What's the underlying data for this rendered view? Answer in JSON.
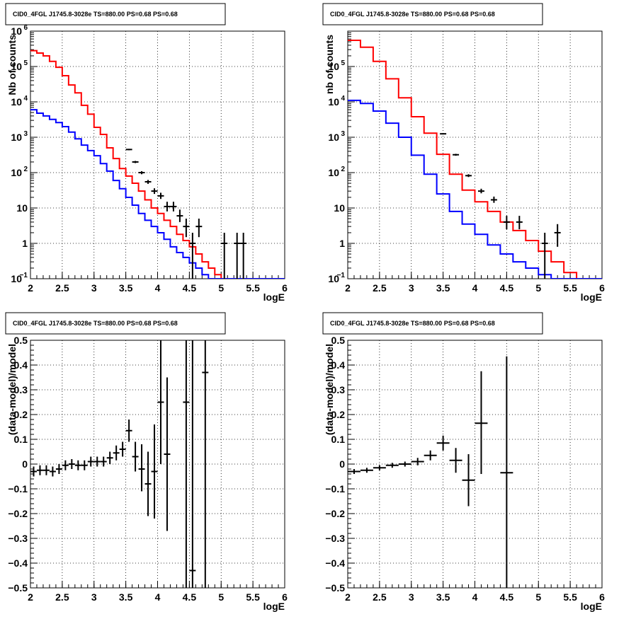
{
  "colors": {
    "data": "#000000",
    "model_total": "#ff0000",
    "model_bkg": "#0000ff",
    "grid": "#000000"
  },
  "chart_data": [
    {
      "type": "line",
      "title": "CID0_4FGL J1745.8-3028e TS=880.00 PS=0.68 PS=0.68",
      "xlabel": "logE",
      "ylabel": "Nb of counts",
      "xlim": [
        2,
        6
      ],
      "ylim": [
        0.1,
        1000000
      ],
      "yscale": "log",
      "grid": true,
      "x_ticks": [
        "2",
        "2.5",
        "3",
        "3.5",
        "4",
        "4.5",
        "5",
        "5.5",
        "6"
      ],
      "y_ticks": [
        {
          "value": 0.1,
          "label": "10",
          "exp": "−1"
        },
        {
          "value": 1,
          "label": "1",
          "exp": ""
        },
        {
          "value": 10,
          "label": "10",
          "exp": ""
        },
        {
          "value": 100,
          "label": "10",
          "exp": "2"
        },
        {
          "value": 1000,
          "label": "10",
          "exp": "3"
        },
        {
          "value": 10000,
          "label": "10",
          "exp": "4"
        },
        {
          "value": 100000,
          "label": "10",
          "exp": "5"
        },
        {
          "value": 1000000,
          "label": "10",
          "exp": "6"
        }
      ],
      "bin_edges": [
        2.0,
        2.1,
        2.2,
        2.3,
        2.4,
        2.5,
        2.6,
        2.7,
        2.8,
        2.9,
        3.0,
        3.1,
        3.2,
        3.3,
        3.4,
        3.5,
        3.6,
        3.7,
        3.8,
        3.9,
        4.0,
        4.1,
        4.2,
        4.3,
        4.4,
        4.5,
        4.6,
        4.7,
        4.8,
        4.9,
        5.0,
        5.1,
        5.2,
        5.3,
        5.4,
        5.5,
        5.6,
        5.7,
        5.8,
        5.9,
        6.0
      ],
      "series": [
        {
          "name": "",
          "style": "hist",
          "color": "#ff0000",
          "values": [
            280000,
            240000,
            200000,
            140000,
            95000,
            55000,
            30000,
            18000,
            8000,
            4500,
            1900,
            1200,
            500,
            250,
            130,
            80,
            50,
            30,
            17,
            10,
            7,
            4.5,
            3,
            1.8,
            1.2,
            0.8,
            0.5,
            0.3,
            0.2,
            0.13,
            0.1,
            0.1,
            0.1,
            0.1,
            0.1,
            0.1,
            0.1,
            0.1,
            0.1,
            0.1
          ]
        },
        {
          "name": "",
          "style": "hist",
          "color": "#0000ff",
          "values": [
            6000,
            4800,
            4000,
            3200,
            2600,
            2000,
            1400,
            900,
            600,
            420,
            300,
            180,
            110,
            60,
            35,
            20,
            12,
            7,
            4.5,
            3,
            2,
            1.3,
            0.8,
            0.55,
            0.4,
            0.28,
            0.2,
            0.13,
            0.1,
            0.1,
            0.1,
            0.1,
            0.1,
            0.1,
            0.1,
            0.1,
            0.1,
            0.1,
            0.1,
            0.1
          ]
        },
        {
          "name": "",
          "style": "points",
          "color": "#000000",
          "points": [
            {
              "x": 3.55,
              "y": 450,
              "ylo": 430,
              "yhi": 470
            },
            {
              "x": 3.65,
              "y": 200,
              "ylo": 186,
              "yhi": 214
            },
            {
              "x": 3.75,
              "y": 100,
              "ylo": 90,
              "yhi": 110
            },
            {
              "x": 3.85,
              "y": 55,
              "ylo": 48,
              "yhi": 62
            },
            {
              "x": 3.95,
              "y": 30,
              "ylo": 25,
              "yhi": 36
            },
            {
              "x": 4.05,
              "y": 22,
              "ylo": 18,
              "yhi": 27
            },
            {
              "x": 4.15,
              "y": 11,
              "ylo": 8,
              "yhi": 15
            },
            {
              "x": 4.25,
              "y": 11,
              "ylo": 8,
              "yhi": 15
            },
            {
              "x": 4.35,
              "y": 6,
              "ylo": 4,
              "yhi": 9
            },
            {
              "x": 4.45,
              "y": 3,
              "ylo": 1.5,
              "yhi": 5
            },
            {
              "x": 4.55,
              "y": 1,
              "ylo": 0.1,
              "yhi": 2
            },
            {
              "x": 4.65,
              "y": 3,
              "ylo": 1.5,
              "yhi": 5
            },
            {
              "x": 5.05,
              "y": 1,
              "ylo": 0.1,
              "yhi": 2
            },
            {
              "x": 5.25,
              "y": 1,
              "ylo": 0.1,
              "yhi": 2
            },
            {
              "x": 5.35,
              "y": 1,
              "ylo": 0.1,
              "yhi": 2
            }
          ]
        }
      ]
    },
    {
      "type": "line",
      "title": "CID0_4FGL J1745.8-3028e TS=880.00 PS=0.68 PS=0.68",
      "xlabel": "logE",
      "ylabel": "nb of counts",
      "xlim": [
        2,
        6
      ],
      "ylim": [
        0.1,
        1000000
      ],
      "yscale": "log",
      "grid": true,
      "x_ticks": [
        "2",
        "2.5",
        "3",
        "3.5",
        "4",
        "4.5",
        "5",
        "5.5",
        "6"
      ],
      "y_ticks": [
        {
          "value": 0.1,
          "label": "10",
          "exp": "−1"
        },
        {
          "value": 1,
          "label": "1",
          "exp": ""
        },
        {
          "value": 10,
          "label": "10",
          "exp": ""
        },
        {
          "value": 100,
          "label": "10",
          "exp": "2"
        },
        {
          "value": 1000,
          "label": "10",
          "exp": "3"
        },
        {
          "value": 10000,
          "label": "10",
          "exp": "4"
        },
        {
          "value": 100000,
          "label": "10",
          "exp": "5"
        }
      ],
      "bin_edges": [
        2.0,
        2.2,
        2.4,
        2.6,
        2.8,
        3.0,
        3.2,
        3.4,
        3.6,
        3.8,
        4.0,
        4.2,
        4.4,
        4.6,
        4.8,
        5.0,
        5.2,
        5.4,
        5.6,
        5.8,
        6.0
      ],
      "series": [
        {
          "name": "",
          "style": "hist",
          "color": "#ff0000",
          "values": [
            550000,
            350000,
            140000,
            45000,
            13000,
            3800,
            1300,
            330,
            90,
            32,
            15,
            8,
            4,
            2.3,
            1.2,
            0.6,
            0.3,
            0.15,
            0.1,
            0.1
          ]
        },
        {
          "name": "",
          "style": "hist",
          "color": "#0000ff",
          "values": [
            11000,
            9000,
            5500,
            2500,
            1000,
            310,
            90,
            25,
            8,
            3.5,
            1.8,
            0.9,
            0.5,
            0.3,
            0.2,
            0.13,
            0.1,
            0.1,
            0.1,
            0.1
          ]
        },
        {
          "name": "",
          "style": "points",
          "color": "#000000",
          "points": [
            {
              "x": 3.5,
              "y": 1250,
              "ylo": 1200,
              "yhi": 1300
            },
            {
              "x": 3.7,
              "y": 320,
              "ylo": 300,
              "yhi": 340
            },
            {
              "x": 3.9,
              "y": 82,
              "ylo": 75,
              "yhi": 90
            },
            {
              "x": 4.1,
              "y": 30,
              "ylo": 26,
              "yhi": 35
            },
            {
              "x": 4.3,
              "y": 17,
              "ylo": 14,
              "yhi": 21
            },
            {
              "x": 4.5,
              "y": 4,
              "ylo": 2.5,
              "yhi": 6
            },
            {
              "x": 4.7,
              "y": 4,
              "ylo": 2.5,
              "yhi": 6
            },
            {
              "x": 5.1,
              "y": 1,
              "ylo": 0.1,
              "yhi": 2
            },
            {
              "x": 5.3,
              "y": 2,
              "ylo": 0.8,
              "yhi": 3.5
            }
          ]
        }
      ]
    },
    {
      "type": "scatter",
      "title": "CID0_4FGL J1745.8-3028e TS=880.00 PS=0.68 PS=0.68",
      "xlabel": "logE",
      "ylabel": "(data-model)/model",
      "xlim": [
        2,
        6
      ],
      "ylim": [
        -0.5,
        0.5
      ],
      "yscale": "linear",
      "grid": true,
      "x_ticks": [
        "2",
        "2.5",
        "3",
        "3.5",
        "4",
        "4.5",
        "5",
        "5.5",
        "6"
      ],
      "y_ticks": [
        {
          "value": -0.5,
          "label": "−0.5",
          "exp": ""
        },
        {
          "value": -0.4,
          "label": "−0.4",
          "exp": ""
        },
        {
          "value": -0.3,
          "label": "−0.3",
          "exp": ""
        },
        {
          "value": -0.2,
          "label": "−0.2",
          "exp": ""
        },
        {
          "value": -0.1,
          "label": "−0.1",
          "exp": ""
        },
        {
          "value": 0,
          "label": "0",
          "exp": ""
        },
        {
          "value": 0.1,
          "label": "0.1",
          "exp": ""
        },
        {
          "value": 0.2,
          "label": "0.2",
          "exp": ""
        },
        {
          "value": 0.3,
          "label": "0.3",
          "exp": ""
        },
        {
          "value": 0.4,
          "label": "0.4",
          "exp": ""
        },
        {
          "value": 0.5,
          "label": "0.5",
          "exp": ""
        }
      ],
      "series": [
        {
          "name": "",
          "style": "points",
          "color": "#000000",
          "xerr": 0.05,
          "points": [
            {
              "x": 2.05,
              "y": -0.03,
              "ylo": -0.05,
              "yhi": -0.01
            },
            {
              "x": 2.15,
              "y": -0.025,
              "ylo": -0.045,
              "yhi": -0.005
            },
            {
              "x": 2.25,
              "y": -0.025,
              "ylo": -0.045,
              "yhi": -0.005
            },
            {
              "x": 2.35,
              "y": -0.03,
              "ylo": -0.05,
              "yhi": -0.01
            },
            {
              "x": 2.45,
              "y": -0.02,
              "ylo": -0.04,
              "yhi": 0.0
            },
            {
              "x": 2.55,
              "y": -0.005,
              "ylo": -0.025,
              "yhi": 0.015
            },
            {
              "x": 2.65,
              "y": 0.0,
              "ylo": -0.02,
              "yhi": 0.02
            },
            {
              "x": 2.75,
              "y": -0.005,
              "ylo": -0.025,
              "yhi": 0.015
            },
            {
              "x": 2.85,
              "y": -0.005,
              "ylo": -0.025,
              "yhi": 0.015
            },
            {
              "x": 2.95,
              "y": 0.01,
              "ylo": -0.01,
              "yhi": 0.03
            },
            {
              "x": 3.05,
              "y": 0.01,
              "ylo": -0.01,
              "yhi": 0.03
            },
            {
              "x": 3.15,
              "y": 0.01,
              "ylo": -0.01,
              "yhi": 0.03
            },
            {
              "x": 3.25,
              "y": 0.025,
              "ylo": 0.0,
              "yhi": 0.05
            },
            {
              "x": 3.35,
              "y": 0.045,
              "ylo": 0.015,
              "yhi": 0.075
            },
            {
              "x": 3.45,
              "y": 0.06,
              "ylo": 0.03,
              "yhi": 0.09
            },
            {
              "x": 3.55,
              "y": 0.135,
              "ylo": 0.09,
              "yhi": 0.18
            },
            {
              "x": 3.65,
              "y": 0.03,
              "ylo": -0.03,
              "yhi": 0.09
            },
            {
              "x": 3.75,
              "y": -0.02,
              "ylo": -0.11,
              "yhi": 0.08
            },
            {
              "x": 3.85,
              "y": -0.08,
              "ylo": -0.21,
              "yhi": 0.05
            },
            {
              "x": 3.95,
              "y": -0.03,
              "ylo": -0.22,
              "yhi": 0.16
            },
            {
              "x": 4.05,
              "y": 0.25,
              "ylo": 0.0,
              "yhi": 0.5
            },
            {
              "x": 4.15,
              "y": 0.04,
              "ylo": -0.27,
              "yhi": 0.35
            },
            {
              "x": 4.45,
              "y": 0.25,
              "ylo": -0.5,
              "yhi": 0.5
            },
            {
              "x": 4.55,
              "y": -0.43,
              "ylo": -0.5,
              "yhi": 0.5
            },
            {
              "x": 4.75,
              "y": 0.37,
              "ylo": -0.5,
              "yhi": 0.5
            }
          ]
        }
      ]
    },
    {
      "type": "scatter",
      "title": "CID0_4FGL J1745.8-3028e TS=880.00 PS=0.68 PS=0.68",
      "xlabel": "logE",
      "ylabel": "(data-model)/model",
      "xlim": [
        2,
        6
      ],
      "ylim": [
        -0.5,
        0.5
      ],
      "yscale": "linear",
      "grid": true,
      "x_ticks": [
        "2",
        "2.5",
        "3",
        "3.5",
        "4",
        "4.5",
        "5",
        "5.5",
        "6"
      ],
      "y_ticks": [
        {
          "value": -0.5,
          "label": "−0.5",
          "exp": ""
        },
        {
          "value": -0.4,
          "label": "−0.4",
          "exp": ""
        },
        {
          "value": -0.3,
          "label": "−0.3",
          "exp": ""
        },
        {
          "value": -0.2,
          "label": "−0.2",
          "exp": ""
        },
        {
          "value": -0.1,
          "label": "−0.1",
          "exp": ""
        },
        {
          "value": 0,
          "label": "0",
          "exp": ""
        },
        {
          "value": 0.1,
          "label": "0.1",
          "exp": ""
        },
        {
          "value": 0.2,
          "label": "0.2",
          "exp": ""
        },
        {
          "value": 0.3,
          "label": "0.3",
          "exp": ""
        },
        {
          "value": 0.4,
          "label": "0.4",
          "exp": ""
        },
        {
          "value": 0.5,
          "label": "0.5",
          "exp": ""
        }
      ],
      "series": [
        {
          "name": "",
          "style": "points",
          "color": "#000000",
          "xerr": 0.1,
          "points": [
            {
              "x": 2.1,
              "y": -0.03,
              "ylo": -0.04,
              "yhi": -0.02
            },
            {
              "x": 2.3,
              "y": -0.025,
              "ylo": -0.035,
              "yhi": -0.015
            },
            {
              "x": 2.5,
              "y": -0.015,
              "ylo": -0.025,
              "yhi": -0.005
            },
            {
              "x": 2.7,
              "y": -0.005,
              "ylo": -0.015,
              "yhi": 0.005
            },
            {
              "x": 2.9,
              "y": 0.0,
              "ylo": -0.01,
              "yhi": 0.01
            },
            {
              "x": 3.1,
              "y": 0.01,
              "ylo": -0.005,
              "yhi": 0.025
            },
            {
              "x": 3.3,
              "y": 0.035,
              "ylo": 0.015,
              "yhi": 0.055
            },
            {
              "x": 3.5,
              "y": 0.085,
              "ylo": 0.055,
              "yhi": 0.115
            },
            {
              "x": 3.7,
              "y": 0.015,
              "ylo": -0.035,
              "yhi": 0.065
            },
            {
              "x": 3.9,
              "y": -0.065,
              "ylo": -0.17,
              "yhi": 0.04
            },
            {
              "x": 4.1,
              "y": 0.165,
              "ylo": -0.04,
              "yhi": 0.375
            },
            {
              "x": 4.5,
              "y": -0.035,
              "ylo": -0.5,
              "yhi": 0.435
            }
          ]
        }
      ]
    }
  ]
}
